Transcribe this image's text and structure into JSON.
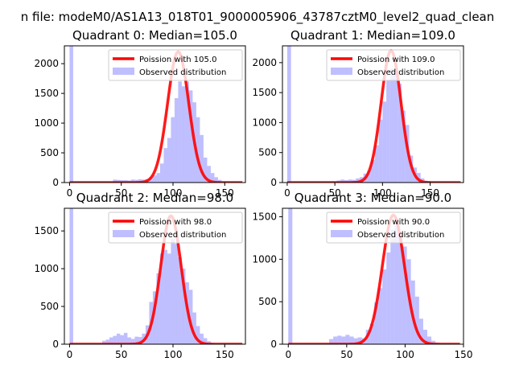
{
  "figure": {
    "suptitle": "n file: modeM0/AS1A13_018T01_9000005906_43787cztM0_level2_quad_clean"
  },
  "colors": {
    "bars": "#8080ff",
    "bar_alpha": 0.5,
    "fit_line": "#ff0000"
  },
  "chart_data": [
    {
      "type": "bar",
      "title": "Quadrant 0: Median=105.0",
      "xlim": [
        -5,
        170
      ],
      "ylim": [
        0,
        2300
      ],
      "xticks": [
        0,
        50,
        100,
        150
      ],
      "yticks": [
        0,
        500,
        1000,
        1500,
        2000
      ],
      "legend_position": "top-right",
      "median": 105.0,
      "bin_width": 3.5,
      "series": [
        {
          "name": "Poission with 105.0",
          "kind": "line",
          "peak": 2200,
          "mean": 105.0
        },
        {
          "name": "Observed distribution",
          "kind": "histogram",
          "bins": [
            [
              0,
              2300
            ],
            [
              42,
              50
            ],
            [
              45.5,
              45
            ],
            [
              49,
              40
            ],
            [
              52.5,
              40
            ],
            [
              56,
              35
            ],
            [
              59.5,
              50
            ],
            [
              63,
              45
            ],
            [
              66.5,
              55
            ],
            [
              70,
              50
            ],
            [
              73.5,
              60
            ],
            [
              77,
              90
            ],
            [
              80.5,
              120
            ],
            [
              84,
              160
            ],
            [
              87.5,
              320
            ],
            [
              91,
              580
            ],
            [
              94.5,
              750
            ],
            [
              98,
              1100
            ],
            [
              101.5,
              1420
            ],
            [
              105,
              1700
            ],
            [
              108.5,
              1620
            ],
            [
              112,
              1700
            ],
            [
              115.5,
              1550
            ],
            [
              119,
              1350
            ],
            [
              122.5,
              1100
            ],
            [
              126,
              800
            ],
            [
              129.5,
              420
            ],
            [
              133,
              280
            ],
            [
              136.5,
              160
            ],
            [
              140,
              90
            ],
            [
              143.5,
              45
            ],
            [
              147,
              20
            ]
          ]
        }
      ]
    },
    {
      "type": "bar",
      "title": "Quadrant 1: Median=109.0",
      "xlim": [
        -5,
        185
      ],
      "ylim": [
        0,
        2280
      ],
      "xticks": [
        0,
        50,
        100,
        150
      ],
      "yticks": [
        0,
        500,
        1000,
        1500,
        2000
      ],
      "legend_position": "top-right",
      "median": 109.0,
      "bin_width": 4,
      "series": [
        {
          "name": "Poission with 109.0",
          "kind": "line",
          "peak": 2200,
          "mean": 109.0
        },
        {
          "name": "Observed distribution",
          "kind": "histogram",
          "bins": [
            [
              0,
              2280
            ],
            [
              52,
              35
            ],
            [
              56,
              50
            ],
            [
              60,
              40
            ],
            [
              64,
              50
            ],
            [
              68,
              45
            ],
            [
              72,
              70
            ],
            [
              76,
              90
            ],
            [
              80,
              150
            ],
            [
              84,
              200
            ],
            [
              88,
              380
            ],
            [
              92,
              620
            ],
            [
              96,
              1050
            ],
            [
              100,
              1350
            ],
            [
              104,
              1700
            ],
            [
              108,
              1900
            ],
            [
              112,
              1800
            ],
            [
              116,
              1650
            ],
            [
              120,
              1200
            ],
            [
              124,
              960
            ],
            [
              128,
              450
            ],
            [
              132,
              250
            ],
            [
              136,
              160
            ],
            [
              140,
              70
            ],
            [
              144,
              30
            ],
            [
              148,
              15
            ]
          ]
        }
      ]
    },
    {
      "type": "bar",
      "title": "Quadrant 2: Median=98.0",
      "xlim": [
        -5,
        170
      ],
      "ylim": [
        0,
        1800
      ],
      "xticks": [
        0,
        50,
        100,
        150
      ],
      "yticks": [
        0,
        500,
        1000,
        1500
      ],
      "legend_position": "top-right",
      "median": 98.0,
      "bin_width": 3.5,
      "series": [
        {
          "name": "Poission with 98.0",
          "kind": "line",
          "peak": 1700,
          "mean": 98.0
        },
        {
          "name": "Observed distribution",
          "kind": "histogram",
          "bins": [
            [
              0,
              1800
            ],
            [
              31.5,
              45
            ],
            [
              35,
              60
            ],
            [
              38.5,
              90
            ],
            [
              42,
              110
            ],
            [
              45.5,
              140
            ],
            [
              49,
              120
            ],
            [
              52.5,
              150
            ],
            [
              56,
              90
            ],
            [
              59.5,
              70
            ],
            [
              63,
              100
            ],
            [
              66.5,
              95
            ],
            [
              70,
              140
            ],
            [
              73.5,
              250
            ],
            [
              77,
              560
            ],
            [
              80.5,
              700
            ],
            [
              84,
              940
            ],
            [
              87.5,
              1200
            ],
            [
              91,
              1250
            ],
            [
              94.5,
              1200
            ],
            [
              98,
              1400
            ],
            [
              101.5,
              1330
            ],
            [
              105,
              1150
            ],
            [
              108.5,
              1000
            ],
            [
              112,
              820
            ],
            [
              115.5,
              720
            ],
            [
              119,
              420
            ],
            [
              122.5,
              240
            ],
            [
              126,
              140
            ],
            [
              129.5,
              80
            ],
            [
              133,
              40
            ],
            [
              136.5,
              20
            ]
          ]
        }
      ]
    },
    {
      "type": "bar",
      "title": "Quadrant 3: Median=90.0",
      "xlim": [
        -5,
        150
      ],
      "ylim": [
        0,
        1600
      ],
      "xticks": [
        0,
        50,
        100,
        150
      ],
      "yticks": [
        0,
        500,
        1000,
        1500
      ],
      "legend_position": "top-right",
      "median": 90.0,
      "bin_width": 3.5,
      "series": [
        {
          "name": "Poission with 90.0",
          "kind": "line",
          "peak": 1520,
          "mean": 90.0
        },
        {
          "name": "Observed distribution",
          "kind": "histogram",
          "bins": [
            [
              0,
              1600
            ],
            [
              35,
              60
            ],
            [
              38.5,
              90
            ],
            [
              42,
              100
            ],
            [
              45.5,
              90
            ],
            [
              49,
              110
            ],
            [
              52.5,
              90
            ],
            [
              56,
              70
            ],
            [
              59.5,
              80
            ],
            [
              63,
              70
            ],
            [
              66.5,
              170
            ],
            [
              70,
              240
            ],
            [
              73.5,
              490
            ],
            [
              77,
              660
            ],
            [
              80.5,
              880
            ],
            [
              84,
              1080
            ],
            [
              87.5,
              1350
            ],
            [
              91,
              1400
            ],
            [
              94.5,
              1300
            ],
            [
              98,
              1150
            ],
            [
              101.5,
              1000
            ],
            [
              105,
              750
            ],
            [
              108.5,
              560
            ],
            [
              112,
              300
            ],
            [
              115.5,
              170
            ],
            [
              119,
              90
            ],
            [
              122.5,
              40
            ],
            [
              126,
              20
            ]
          ]
        }
      ]
    }
  ]
}
